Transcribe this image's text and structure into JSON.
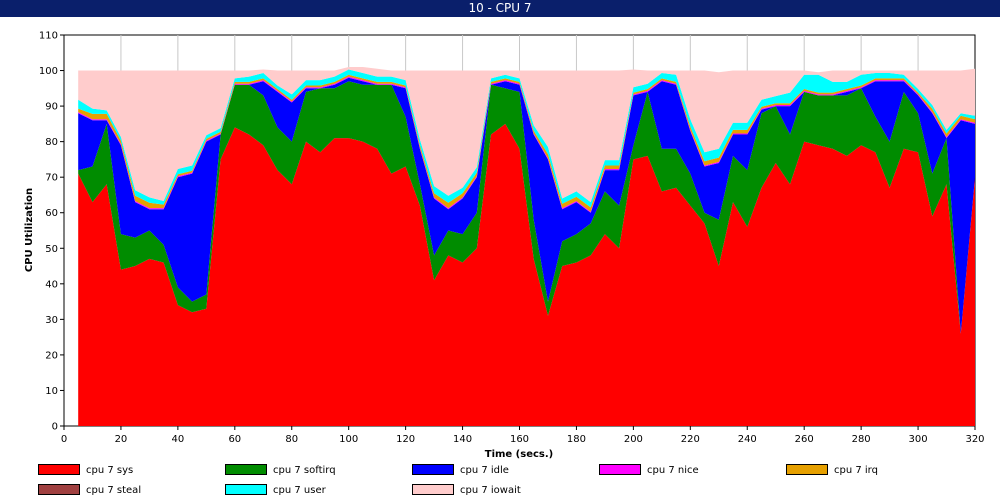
{
  "window": {
    "title": "10 - CPU 7"
  },
  "chart_data": {
    "type": "area",
    "stacked": true,
    "xlabel": "Time (secs.)",
    "ylabel": "CPU Utilization",
    "xlim": [
      0,
      320
    ],
    "ylim": [
      0,
      110
    ],
    "xticks": [
      0,
      20,
      40,
      60,
      80,
      100,
      120,
      140,
      160,
      180,
      200,
      220,
      240,
      260,
      280,
      300,
      320
    ],
    "yticks": [
      0,
      10,
      20,
      30,
      40,
      50,
      60,
      70,
      80,
      90,
      100,
      110
    ],
    "grid": "vertical",
    "legend_position": "bottom",
    "x": [
      5,
      10,
      15,
      20,
      25,
      30,
      35,
      40,
      45,
      50,
      55,
      60,
      65,
      70,
      75,
      80,
      85,
      90,
      95,
      100,
      105,
      110,
      115,
      120,
      125,
      130,
      135,
      140,
      145,
      150,
      155,
      160,
      165,
      170,
      175,
      180,
      185,
      190,
      195,
      200,
      205,
      210,
      215,
      220,
      225,
      230,
      235,
      240,
      245,
      250,
      255,
      260,
      265,
      270,
      275,
      280,
      285,
      290,
      295,
      300,
      305,
      310,
      315,
      320
    ],
    "series": [
      {
        "name": "cpu 7 sys",
        "color": "#ff0000",
        "values": [
          71,
          63,
          68,
          44,
          45,
          47,
          46,
          34,
          32,
          33,
          75,
          84,
          82,
          79,
          72,
          68,
          80,
          77,
          81,
          81,
          80,
          78,
          71,
          73,
          62,
          41,
          48,
          46,
          50,
          82,
          85,
          78,
          47,
          31,
          45,
          46,
          48,
          54,
          50,
          75,
          76,
          66,
          67,
          62,
          57,
          45,
          63,
          56,
          67,
          74,
          68,
          80,
          79,
          78,
          76,
          79,
          77,
          67,
          78,
          77,
          59,
          68,
          26,
          70
        ]
      },
      {
        "name": "cpu 7 softirq",
        "color": "#008c00",
        "values": [
          1,
          10,
          17,
          10,
          8,
          8,
          5,
          5,
          3,
          4,
          7,
          12,
          14,
          14,
          12,
          12,
          14,
          18,
          14,
          16,
          16,
          18,
          25,
          14,
          6,
          7,
          7,
          8,
          10,
          14,
          10,
          16,
          11,
          4,
          7,
          8,
          9,
          12,
          12,
          4,
          18,
          12,
          11,
          9,
          3,
          13,
          13,
          16,
          21,
          16,
          14,
          14,
          14,
          15,
          17,
          16,
          10,
          13,
          16,
          11,
          12,
          13,
          0,
          0
        ]
      },
      {
        "name": "cpu 7 idle",
        "color": "#0000ff",
        "values": [
          16,
          13,
          1,
          25,
          10,
          6,
          10,
          31,
          36,
          43,
          0,
          0,
          0,
          4,
          10,
          11,
          1,
          0,
          1,
          1,
          1,
          0,
          0,
          8,
          10,
          16,
          6,
          10,
          10,
          0,
          2,
          2,
          24,
          40,
          9,
          9,
          3,
          6,
          10,
          14,
          0,
          19,
          18,
          12,
          13,
          16,
          6,
          10,
          1,
          0,
          8,
          0,
          0,
          0,
          1,
          0,
          10,
          17,
          3,
          5,
          17,
          0,
          60,
          15
        ]
      },
      {
        "name": "cpu 7 nice",
        "color": "#ff00ff",
        "values": [
          0.3,
          0.3,
          0.3,
          0.3,
          0.3,
          0.3,
          0.3,
          0.3,
          0.3,
          0.3,
          0.3,
          0.3,
          0.3,
          0.3,
          0.3,
          0.3,
          0.3,
          0.3,
          0.3,
          0.3,
          0.3,
          0.3,
          0.3,
          0.3,
          0.3,
          0.3,
          0.3,
          0.3,
          0.3,
          0.3,
          0.3,
          0.3,
          0.3,
          0.3,
          0.3,
          0.3,
          0.3,
          0.3,
          0.3,
          0.3,
          0.3,
          0.3,
          0.3,
          0.3,
          0.3,
          0.3,
          0.3,
          0.3,
          0.3,
          0.3,
          0.3,
          0.3,
          0.3,
          0.3,
          0.3,
          0.3,
          0.3,
          0.3,
          0.3,
          0.3,
          0.3,
          0.3,
          0.3,
          0.3
        ]
      },
      {
        "name": "cpu 7 irq",
        "color": "#e6a000",
        "values": [
          1,
          1.5,
          1.5,
          1,
          1.5,
          1.5,
          1,
          0.5,
          0.5,
          0.5,
          0.5,
          0.5,
          0.5,
          0.5,
          0.5,
          0.5,
          0.5,
          0.5,
          0.5,
          0.5,
          0.5,
          0.5,
          0.5,
          0.5,
          0.8,
          1.2,
          1.5,
          1.2,
          1,
          0.5,
          0.5,
          0.5,
          0.8,
          1.2,
          1.2,
          1.2,
          1.2,
          1,
          1,
          0.5,
          0.5,
          0.5,
          0.5,
          1,
          1.2,
          1.2,
          1,
          1,
          0.5,
          0.5,
          0.5,
          0.5,
          0.5,
          0.5,
          0.5,
          0.5,
          0.5,
          0.5,
          0.5,
          0.5,
          1,
          1,
          1,
          1
        ]
      },
      {
        "name": "cpu 7 steal",
        "color": "#a04040",
        "values": [
          0,
          0,
          0,
          0,
          0,
          0,
          0,
          0,
          0,
          0,
          0,
          0,
          0,
          0,
          0,
          0,
          0,
          0,
          0,
          0,
          0,
          0,
          0,
          0,
          0,
          0,
          0,
          0,
          0,
          0,
          0,
          0,
          0,
          0,
          0,
          0,
          0,
          0,
          0,
          0,
          0,
          0,
          0,
          0,
          0,
          0,
          0,
          0,
          0,
          0,
          0,
          0,
          0,
          0,
          0,
          0,
          0,
          0,
          0,
          0,
          0,
          0,
          0,
          0
        ]
      },
      {
        "name": "cpu 7 user",
        "color": "#00ffff",
        "values": [
          2.5,
          1.5,
          1,
          1,
          1.5,
          1.5,
          1,
          1.5,
          1.5,
          1,
          1,
          1,
          1.5,
          1.5,
          1,
          1.5,
          1.5,
          1.5,
          1.5,
          1.5,
          1.5,
          1.5,
          1.5,
          1.5,
          1.5,
          2,
          2,
          1.5,
          1.5,
          1,
          1,
          1,
          1.5,
          2,
          1.5,
          1.5,
          1.5,
          1.5,
          1.5,
          1.5,
          1.5,
          1.5,
          2,
          2,
          2.5,
          2.5,
          2,
          2,
          2,
          2,
          3,
          4,
          5,
          3,
          2,
          3,
          1.5,
          1.5,
          1,
          1,
          1,
          1,
          0.7,
          1
        ]
      },
      {
        "name": "cpu 7 iowait",
        "color": "#ffcccc",
        "values": [
          8.2,
          10.7,
          11.2,
          18.7,
          33.7,
          35.7,
          36.7,
          27.7,
          26.7,
          18.2,
          16.2,
          2.2,
          1.7,
          1,
          4.2,
          6.7,
          2.7,
          2.7,
          1.7,
          0.7,
          1.7,
          2.2,
          1.7,
          2.7,
          19.4,
          32.5,
          35.2,
          33,
          27.2,
          2.2,
          1.2,
          2.2,
          15.4,
          21.5,
          36,
          34,
          37,
          25.2,
          25.2,
          5,
          3.7,
          0.7,
          1.2,
          13.7,
          23,
          21.5,
          14.7,
          14.7,
          8.2,
          7.2,
          6.2,
          1.2,
          0.7,
          3.2,
          3.2,
          1.2,
          0.7,
          0.7,
          1.2,
          5.2,
          9.7,
          16.7,
          12,
          13.2
        ]
      }
    ]
  }
}
